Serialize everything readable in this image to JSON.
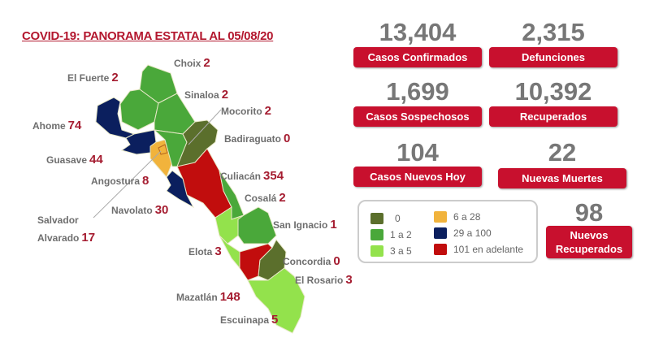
{
  "title": "COVID-19: PANORAMA ESTATAL AL 05/08/20",
  "colors": {
    "c0": "#5b6f2c",
    "c1": "#4aa83a",
    "c2": "#93e24c",
    "c3": "#f1b33c",
    "c4": "#0b1f5e",
    "c5": "#c10d0d",
    "accent": "#c8102e"
  },
  "municipalities": [
    {
      "name": "Choix",
      "value": "2"
    },
    {
      "name": "El Fuerte",
      "value": "2"
    },
    {
      "name": "Sinaloa",
      "value": "2"
    },
    {
      "name": "Mocorito",
      "value": "2"
    },
    {
      "name": "Ahome",
      "value": "74"
    },
    {
      "name": "Badiraguato",
      "value": "0"
    },
    {
      "name": "Guasave",
      "value": "44"
    },
    {
      "name": "Angostura",
      "value": "8"
    },
    {
      "name": "Culiacán",
      "value": "354"
    },
    {
      "name": "Cosalá",
      "value": "2"
    },
    {
      "name": "Salvador",
      "value": ""
    },
    {
      "name": "Alvarado",
      "value": "17"
    },
    {
      "name": "Navolato",
      "value": "30"
    },
    {
      "name": "San Ignacio",
      "value": "1"
    },
    {
      "name": "Elota",
      "value": "3"
    },
    {
      "name": "Concordia",
      "value": "0"
    },
    {
      "name": "El Rosario",
      "value": "3"
    },
    {
      "name": "Mazatlán",
      "value": "148"
    },
    {
      "name": "Escuinapa",
      "value": "5"
    }
  ],
  "stats": [
    {
      "value": "13,404",
      "label": "Casos Confirmados"
    },
    {
      "value": "2,315",
      "label": "Defunciones"
    },
    {
      "value": "1,699",
      "label": "Casos Sospechosos"
    },
    {
      "value": "10,392",
      "label": "Recuperados"
    },
    {
      "value": "104",
      "label": "Casos Nuevos Hoy"
    },
    {
      "value": "22",
      "label": "Nuevas Muertes"
    },
    {
      "value": "98",
      "label": "Nuevos Recuperados"
    }
  ],
  "legend": [
    {
      "label": "0",
      "color": "#5b6f2c"
    },
    {
      "label": "1 a 2",
      "color": "#4aa83a"
    },
    {
      "label": "3 a 5",
      "color": "#93e24c"
    },
    {
      "label": "6 a 28",
      "color": "#f1b33c"
    },
    {
      "label": "29 a 100",
      "color": "#0b1f5e"
    },
    {
      "label": "101 en adelante",
      "color": "#c10d0d"
    }
  ]
}
